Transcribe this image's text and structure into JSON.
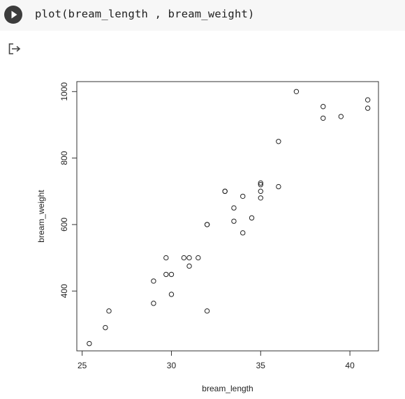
{
  "cell": {
    "code": "plot(bream_length , bream_weight)",
    "run_icon": "play-icon",
    "output_icon": "output-arrow-icon"
  },
  "chart_data": {
    "type": "scatter",
    "xlabel": "bream_length",
    "ylabel": "bream_weight",
    "xlim": [
      24.7,
      41.6
    ],
    "ylim": [
      220,
      1030
    ],
    "xticks": [
      25,
      30,
      35,
      40
    ],
    "yticks": [
      400,
      600,
      800,
      1000
    ],
    "grid": false,
    "points": [
      [
        25.4,
        242
      ],
      [
        26.3,
        290
      ],
      [
        26.5,
        340
      ],
      [
        29.0,
        363
      ],
      [
        29.0,
        430
      ],
      [
        29.7,
        450
      ],
      [
        29.7,
        500
      ],
      [
        30.0,
        390
      ],
      [
        30.0,
        450
      ],
      [
        30.7,
        500
      ],
      [
        31.0,
        475
      ],
      [
        31.0,
        500
      ],
      [
        31.5,
        500
      ],
      [
        32.0,
        340
      ],
      [
        32.0,
        600
      ],
      [
        32.0,
        600
      ],
      [
        33.0,
        700
      ],
      [
        33.0,
        700
      ],
      [
        33.5,
        610
      ],
      [
        33.5,
        650
      ],
      [
        34.0,
        575
      ],
      [
        34.0,
        685
      ],
      [
        34.5,
        620
      ],
      [
        35.0,
        680
      ],
      [
        35.0,
        700
      ],
      [
        35.0,
        725
      ],
      [
        35.0,
        720
      ],
      [
        36.0,
        714
      ],
      [
        36.0,
        850
      ],
      [
        37.0,
        1000
      ],
      [
        38.5,
        920
      ],
      [
        38.5,
        955
      ],
      [
        39.5,
        925
      ],
      [
        41.0,
        975
      ],
      [
        41.0,
        950
      ]
    ]
  }
}
